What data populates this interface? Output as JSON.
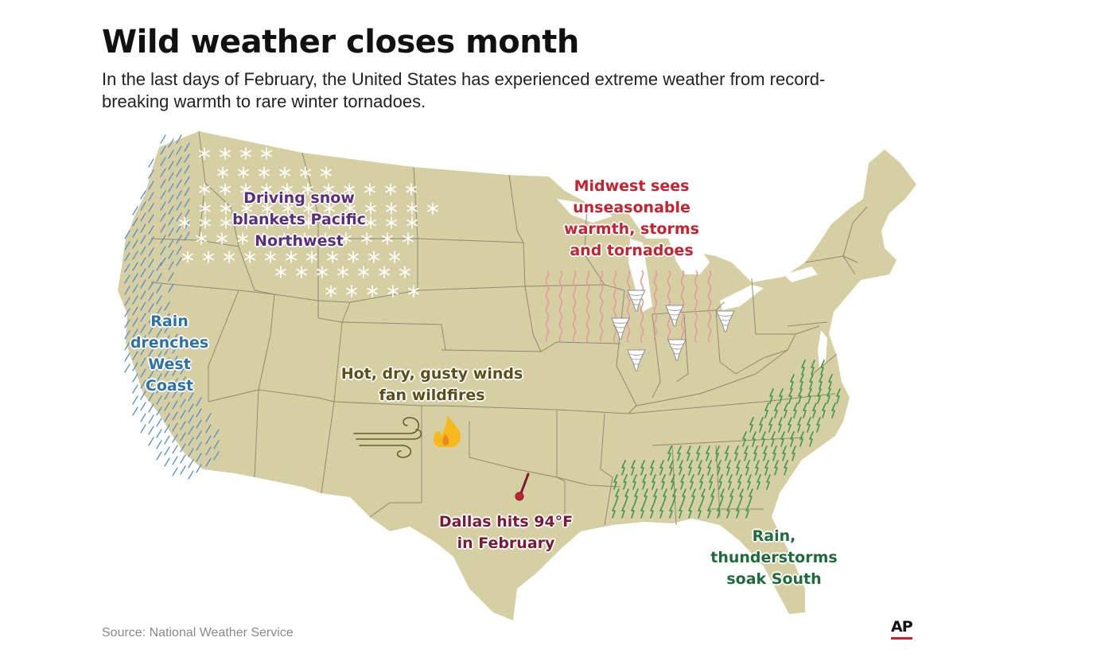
{
  "title": "Wild weather closes month",
  "subtitle": "In the last days of February, the United States has experienced extreme weather from record-breaking warmth to rare winter tornadoes.",
  "labels": {
    "snow": [
      "Driving snow",
      "blankets Pacific",
      "Northwest"
    ],
    "rain_west": [
      "Rain",
      "drenches",
      "West",
      "Coast"
    ],
    "midwest": [
      "Midwest sees",
      "unseasonable",
      "warmth, storms",
      "and tornadoes"
    ],
    "wildfire": [
      "Hot, dry, gusty winds",
      "fan wildfires"
    ],
    "dallas": [
      "Dallas hits 94°F",
      "in February"
    ],
    "south": [
      "Rain,",
      "thunderstorms",
      "soak South"
    ]
  },
  "source": "Source: National Weather Service",
  "credit": "AP",
  "icons": [
    "snowflake-icon",
    "rain-streak-icon",
    "heat-wave-icon",
    "tornado-icon",
    "wind-icon",
    "fire-icon",
    "thermometer-icon",
    "thunderstorm-icon"
  ],
  "colors": {
    "land": "#d6cfa4",
    "border": "#8f8a70",
    "snow_text": "#5b2d7d",
    "rain_text": "#2a72a8",
    "rain_streak": "#5b8fc4",
    "midwest_text": "#c8212f",
    "heat_wave": "#e59a9a",
    "wildfire_text": "#5e4e18",
    "fire": "#f6b91d",
    "dallas_text": "#7a1a35",
    "south_text": "#1e6c3c",
    "thunder": "#3a9a48",
    "ap_red": "#d21f26"
  }
}
